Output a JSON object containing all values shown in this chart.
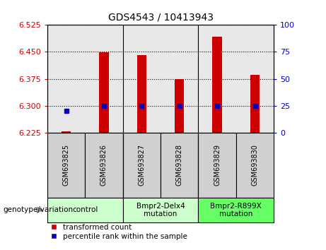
{
  "title": "GDS4543 / 10413943",
  "samples": [
    "GSM693825",
    "GSM693826",
    "GSM693827",
    "GSM693828",
    "GSM693829",
    "GSM693830"
  ],
  "transformed_counts": [
    6.228,
    6.448,
    6.442,
    6.375,
    6.493,
    6.385
  ],
  "percentile_ranks": [
    20,
    25,
    25,
    25,
    25,
    25
  ],
  "ylim_left": [
    6.225,
    6.525
  ],
  "ylim_right": [
    0,
    100
  ],
  "yticks_left": [
    6.225,
    6.3,
    6.375,
    6.45,
    6.525
  ],
  "yticks_right": [
    0,
    25,
    50,
    75,
    100
  ],
  "bar_color": "#cc0000",
  "dot_color": "#0000cc",
  "bar_bottom": 6.225,
  "groups": [
    {
      "label": "control",
      "start": 0,
      "end": 2,
      "color": "#ccffcc"
    },
    {
      "label": "Bmpr2-Delx4\nmutation",
      "start": 2,
      "end": 4,
      "color": "#ccffcc"
    },
    {
      "label": "Bmpr2-R899X\nmutation",
      "start": 4,
      "end": 6,
      "color": "#66ff66"
    }
  ],
  "genotype_label": "genotype/variation",
  "legend_red_label": "transformed count",
  "legend_blue_label": "percentile rank within the sample",
  "tick_label_color_left": "#cc0000",
  "tick_label_color_right": "#0000cc",
  "plot_bg_color": "#e8e8e8",
  "sample_box_color": "#d0d0d0",
  "fig_width": 4.61,
  "fig_height": 3.54
}
